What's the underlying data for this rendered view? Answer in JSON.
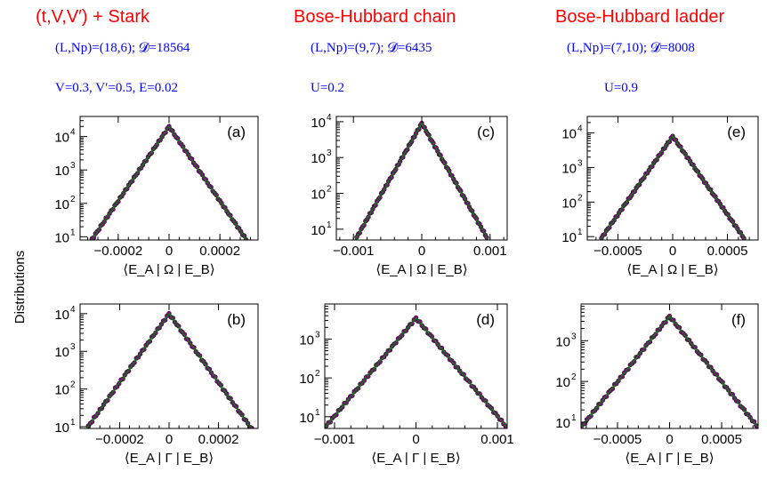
{
  "headers": [
    {
      "title": "(t,V,V′) + Stark",
      "params": "(L,Np)=(18,6);  𝓓=18564",
      "extra": "V=0.3, V′=0.5, E=0.02"
    },
    {
      "title": "Bose-Hubbard chain",
      "params": "(L,Np)=(9,7);  𝓓=6435",
      "extra": "U=0.2"
    },
    {
      "title": "Bose-Hubbard ladder",
      "params": "(L,Np)=(7,10);  𝓓=8008",
      "extra": "U=0.9"
    }
  ],
  "y_axis_label": "Distributions",
  "colors": {
    "markers": "#8b008b",
    "curve": "#008000",
    "axis": "#000000",
    "header_red": "#ff0000",
    "header_blue": "#0000ff"
  },
  "chart_data": [
    {
      "id": "a",
      "panel_label": "(a)",
      "type": "line",
      "yscale": "log",
      "xlim": [
        -0.00035,
        0.00035
      ],
      "ylim": [
        8,
        40000
      ],
      "xticks": [
        -0.0002,
        0,
        0.0002
      ],
      "xtick_labels": [
        "−0.0002",
        "0",
        "0.0002"
      ],
      "yticks": [
        10,
        100,
        1000,
        10000
      ],
      "ytick_labels": [
        "10",
        "10",
        "10",
        "10"
      ],
      "ytick_exps": [
        "1",
        "2",
        "3",
        "4"
      ],
      "xlabel": "⟨E_A | Ω | E_B⟩",
      "series": [
        {
          "peak": 20000,
          "scale": 3.9e-05,
          "points_from": -0.00031,
          "points_to": 0.00031
        }
      ]
    },
    {
      "id": "c",
      "panel_label": "(c)",
      "type": "line",
      "yscale": "log",
      "xlim": [
        -0.00125,
        0.00125
      ],
      "ylim": [
        5,
        14000
      ],
      "xticks": [
        -0.001,
        0,
        0.001
      ],
      "xtick_labels": [
        "−0.001",
        "0",
        "0.001"
      ],
      "yticks": [
        10,
        100,
        1000,
        10000
      ],
      "ytick_labels": [
        "10",
        "10",
        "10",
        "10"
      ],
      "ytick_exps": [
        "1",
        "2",
        "3",
        "4"
      ],
      "xlabel": "⟨E_A | Ω | E_B⟩",
      "series": [
        {
          "peak": 9000,
          "scale": 0.00013,
          "points_from": -0.00095,
          "points_to": 0.00095
        }
      ]
    },
    {
      "id": "e",
      "panel_label": "(e)",
      "type": "line",
      "yscale": "log",
      "xlim": [
        -0.00078,
        0.00078
      ],
      "ylim": [
        8,
        30000
      ],
      "xticks": [
        -0.0005,
        0,
        0.0005
      ],
      "xtick_labels": [
        "−0.0005",
        "0",
        "0.0005"
      ],
      "yticks": [
        10,
        100,
        1000,
        10000
      ],
      "ytick_labels": [
        "10",
        "10",
        "10",
        "10"
      ],
      "ytick_exps": [
        "1",
        "2",
        "3",
        "4"
      ],
      "xlabel": "⟨E_A | Ω | E_B⟩",
      "series": [
        {
          "peak": 8000,
          "scale": 9.6e-05,
          "points_from": -0.00065,
          "points_to": 0.00065
        }
      ]
    },
    {
      "id": "b",
      "panel_label": "(b)",
      "type": "line",
      "yscale": "log",
      "xlim": [
        -0.00036,
        0.00036
      ],
      "ylim": [
        9,
        18000
      ],
      "xticks": [
        -0.0002,
        0,
        0.0002
      ],
      "xtick_labels": [
        "−0.0002",
        "0",
        "0.0002"
      ],
      "yticks": [
        10,
        100,
        1000,
        10000
      ],
      "ytick_labels": [
        "10",
        "10",
        "10",
        "10"
      ],
      "ytick_exps": [
        "1",
        "2",
        "3",
        "4"
      ],
      "xlabel": "⟨E_A | Γ | E_B⟩",
      "series": [
        {
          "peak": 10000,
          "scale": 4.75e-05,
          "points_from": -0.00035,
          "points_to": 0.00035
        }
      ]
    },
    {
      "id": "d",
      "panel_label": "(d)",
      "type": "line",
      "yscale": "log",
      "xlim": [
        -0.00112,
        0.00112
      ],
      "ylim": [
        5,
        8000
      ],
      "xticks": [
        -0.001,
        0,
        0.001
      ],
      "xtick_labels": [
        "−0.001",
        "0",
        "0.001"
      ],
      "yticks": [
        10,
        100,
        1000
      ],
      "ytick_labels": [
        "10",
        "10",
        "10"
      ],
      "ytick_exps": [
        "1",
        "2",
        "3"
      ],
      "xlabel": "⟨E_A | Γ | E_B⟩",
      "series": [
        {
          "peak": 3500,
          "scale": 0.000172,
          "points_from": -0.0011,
          "points_to": 0.0011
        }
      ]
    },
    {
      "id": "f",
      "panel_label": "(f)",
      "type": "line",
      "yscale": "log",
      "xlim": [
        -0.00085,
        0.00085
      ],
      "ylim": [
        7,
        8000
      ],
      "xticks": [
        -0.0005,
        0,
        0.0005
      ],
      "xtick_labels": [
        "−0.0005",
        "0",
        "0.0005"
      ],
      "yticks": [
        10,
        100,
        1000
      ],
      "ytick_labels": [
        "10",
        "10",
        "10"
      ],
      "ytick_exps": [
        "1",
        "2",
        "3"
      ],
      "xlabel": "⟨E_A | Γ | E_B⟩",
      "series": [
        {
          "peak": 4000,
          "scale": 0.000135,
          "points_from": -0.00085,
          "points_to": 0.00085
        }
      ]
    }
  ]
}
